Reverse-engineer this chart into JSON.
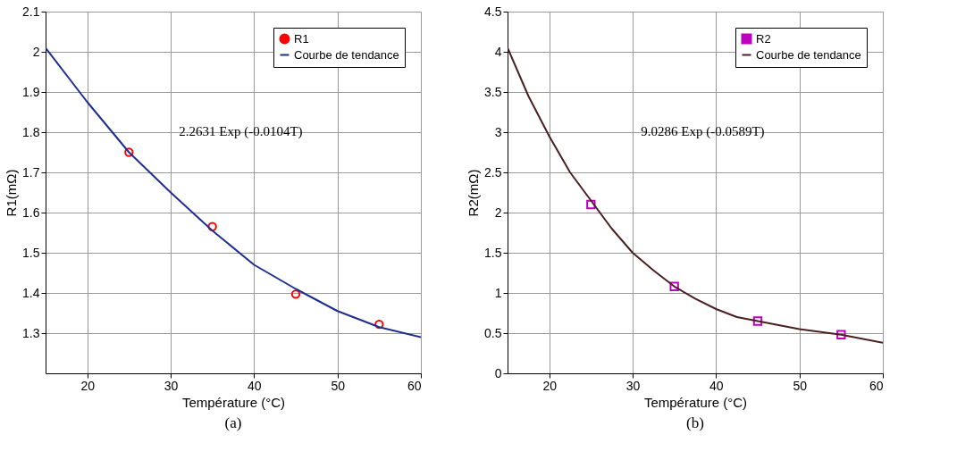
{
  "chart_data": [
    {
      "type": "scatter",
      "title": "(a)",
      "xlabel": "Température (°C)",
      "ylabel": "R1(mΩ)",
      "xlim": [
        15,
        60
      ],
      "xticks": [
        20,
        30,
        40,
        50,
        60
      ],
      "ylim": [
        1.2,
        2.1
      ],
      "yticks": [
        1.3,
        1.4,
        1.5,
        1.6,
        1.7,
        1.8,
        1.9,
        2,
        2.1
      ],
      "grid": true,
      "legend": "top right",
      "annotations": [
        "2.2631 Exp (-0.0104T)"
      ],
      "series": [
        {
          "name": "R1",
          "type": "scatter",
          "marker": "circle",
          "color": "#ff0000",
          "x": [
            25,
            35,
            45,
            55
          ],
          "values": [
            1.75,
            1.565,
            1.397,
            1.322
          ]
        },
        {
          "name": "Courbe de tendance",
          "type": "line",
          "color": "#1f2f8f",
          "x": [
            15,
            20,
            25,
            30,
            35,
            40,
            45,
            50,
            55,
            60
          ],
          "values": [
            2.01,
            1.875,
            1.75,
            1.65,
            1.555,
            1.47,
            1.41,
            1.355,
            1.315,
            1.29
          ]
        }
      ]
    },
    {
      "type": "scatter",
      "title": "(b)",
      "xlabel": "Température (°C)",
      "ylabel": "R2(mΩ)",
      "xlim": [
        15,
        60
      ],
      "xticks": [
        20,
        30,
        40,
        50,
        60
      ],
      "ylim": [
        0,
        4.5
      ],
      "yticks": [
        0,
        0.5,
        1,
        1.5,
        2,
        2.5,
        3,
        3.5,
        4,
        4.5
      ],
      "grid": true,
      "legend": "top right",
      "annotations": [
        "9.0286 Exp (-0.0589T)"
      ],
      "series": [
        {
          "name": "R2",
          "type": "scatter",
          "marker": "square",
          "color": "#c000c0",
          "x": [
            25,
            35,
            45,
            55
          ],
          "values": [
            2.1,
            1.08,
            0.65,
            0.48
          ]
        },
        {
          "name": "Courbe de tendance",
          "type": "line",
          "color": "#4a2020",
          "x": [
            15,
            17.5,
            20,
            22.5,
            25,
            27.5,
            30,
            32.5,
            35,
            37.5,
            40,
            42.5,
            45,
            50,
            55,
            60
          ],
          "values": [
            4.05,
            3.45,
            2.95,
            2.5,
            2.15,
            1.8,
            1.5,
            1.28,
            1.08,
            0.93,
            0.8,
            0.7,
            0.65,
            0.55,
            0.48,
            0.38
          ]
        }
      ]
    }
  ]
}
